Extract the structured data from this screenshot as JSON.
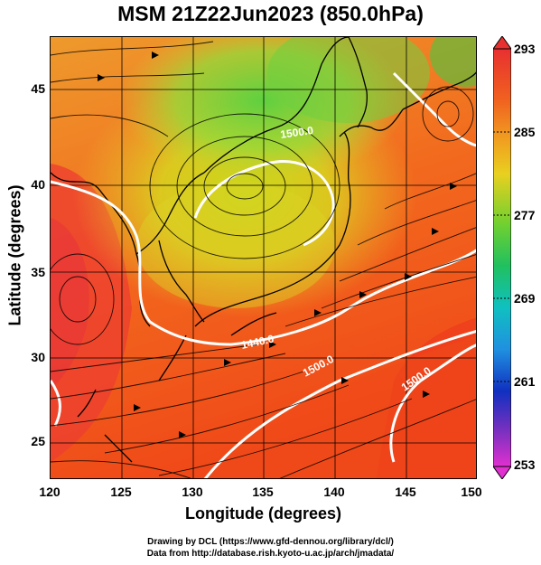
{
  "title": "MSM 21Z22Jun2023 (850.0hPa)",
  "map": {
    "xlabel": "Longitude (degrees)",
    "ylabel": "Latitude  (degrees)",
    "lon_range": [
      120,
      150
    ],
    "lat_range": [
      22.5,
      47.5
    ],
    "xticks": [
      "120",
      "125",
      "130",
      "135",
      "140",
      "145",
      "150"
    ],
    "yticks": [
      "25",
      "30",
      "35",
      "40",
      "45"
    ],
    "contour_labels": [
      "1440.0",
      "1500.0",
      "1500.0",
      "1500.0"
    ],
    "colorbar": {
      "ticks": [
        "293",
        "285",
        "277",
        "269",
        "261",
        "253"
      ],
      "range": [
        253,
        293
      ]
    }
  },
  "credits": {
    "line1": "Drawing by DCL (https://www.gfd-dennou.org/library/dcl/)",
    "line2": "Data from http://database.rish.kyoto-u.ac.jp/arch/jmadata/"
  }
}
